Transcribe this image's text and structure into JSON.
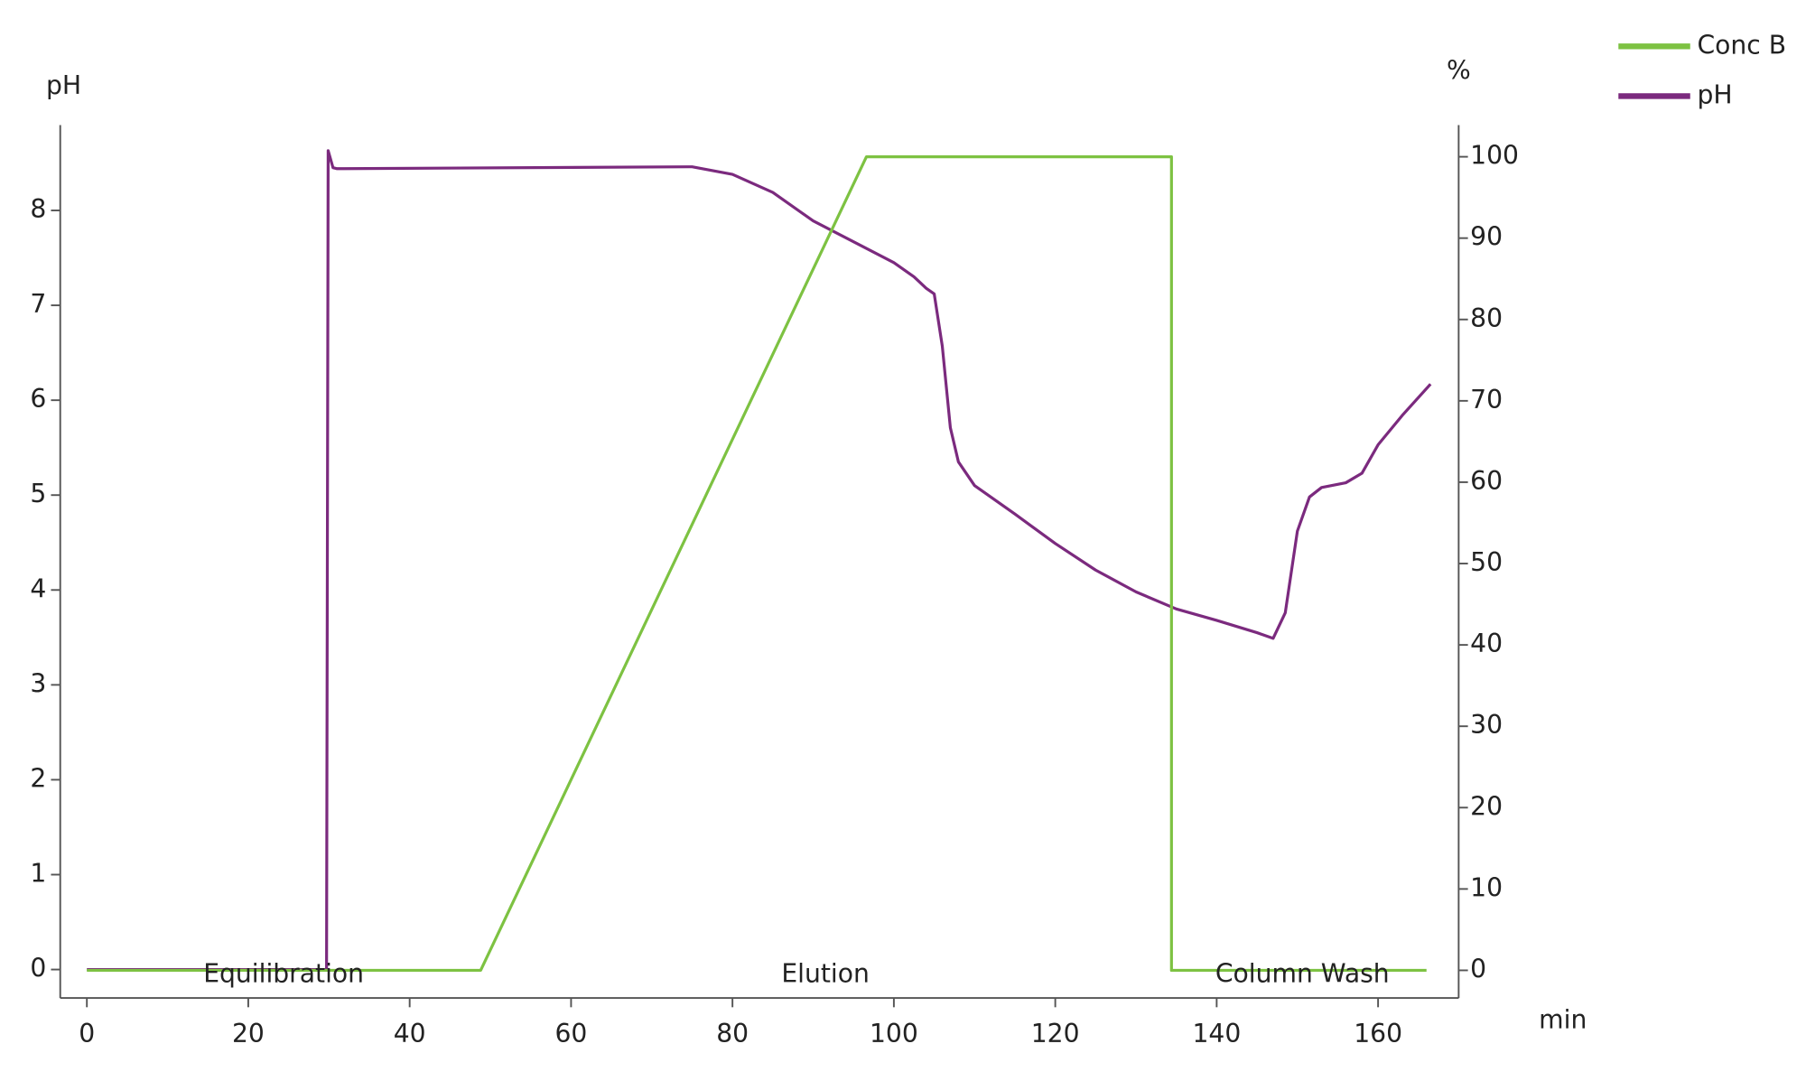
{
  "chart_data": {
    "type": "line",
    "y_label": "pH",
    "y2_label": "%",
    "x_label": "min",
    "xlim": [
      -3.3,
      169.7
    ],
    "xticks": [
      0,
      20,
      40,
      60,
      80,
      100,
      120,
      140,
      160
    ],
    "ylim": [
      -0.3,
      8.9
    ],
    "yticks": [
      0,
      1,
      2,
      3,
      4,
      5,
      6,
      7,
      8
    ],
    "y2lim": [
      -3.4,
      103.9
    ],
    "y2ticks": [
      0,
      10,
      20,
      30,
      40,
      50,
      60,
      70,
      80,
      90,
      100
    ],
    "annotations": [
      "Equilibration",
      "Elution",
      "Column Wash"
    ],
    "series": [
      {
        "name": "Conc B",
        "color": "#7dc242",
        "axis": "y2",
        "x": [
          0,
          48.8,
          96.6,
          134.4,
          134.4,
          166
        ],
        "values": [
          0,
          0,
          100,
          100,
          0,
          0
        ]
      },
      {
        "name": "pH",
        "color": "#7b2a7e",
        "axis": "y",
        "x": [
          0,
          29.7,
          29.9,
          30.5,
          31,
          75,
          80,
          85,
          90,
          95,
          100,
          102.5,
          104,
          105,
          106,
          107,
          108,
          110,
          115,
          120,
          125,
          130,
          135,
          140,
          145,
          147,
          148.5,
          150,
          151.5,
          153,
          156,
          158,
          160,
          163,
          166.5
        ],
        "values": [
          0,
          0,
          8.63,
          8.45,
          8.44,
          8.46,
          8.38,
          8.19,
          7.89,
          7.67,
          7.45,
          7.3,
          7.18,
          7.12,
          6.57,
          5.71,
          5.35,
          5.1,
          4.8,
          4.49,
          4.21,
          3.98,
          3.8,
          3.68,
          3.55,
          3.49,
          3.76,
          4.62,
          4.98,
          5.08,
          5.13,
          5.23,
          5.53,
          5.84,
          6.17
        ]
      }
    ],
    "legend": "top-right"
  }
}
